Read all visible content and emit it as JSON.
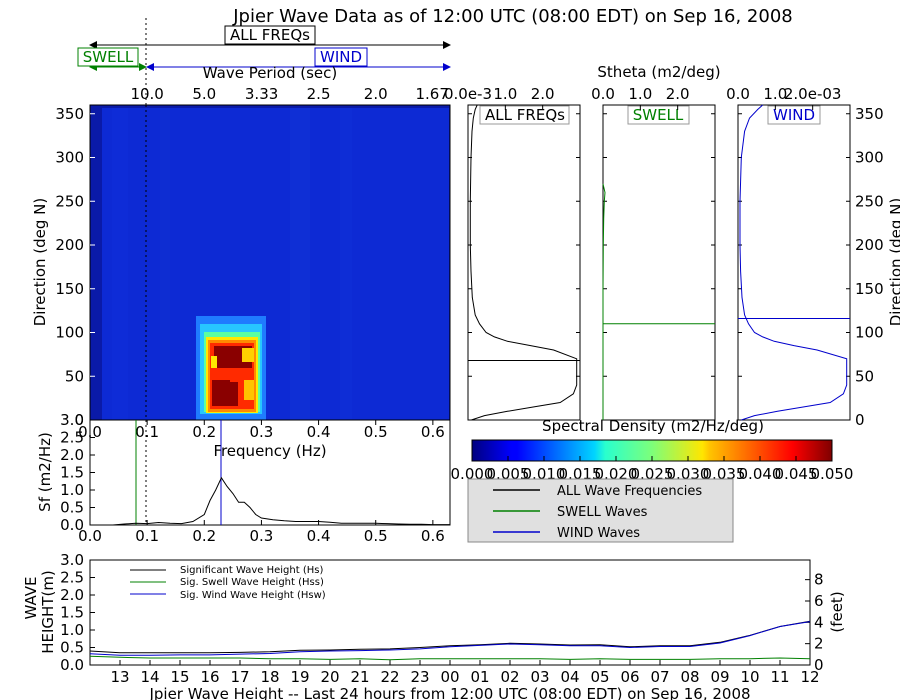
{
  "title": "Jpier Wave Data as of 12:00 UTC (08:00 EDT) on Sep 16, 2008",
  "colors": {
    "all": "#000000",
    "swell": "#008000",
    "wind": "#0000cc",
    "panel_bg": "#e0e0e0"
  },
  "top_band": {
    "all_label": "ALL FREQs",
    "swell_label": "SWELL",
    "wind_label": "WIND",
    "period_label": "Wave Period (sec)",
    "period_ticks": [
      "10.0",
      "5.0",
      "3.33",
      "2.5",
      "2.0",
      "1.67"
    ]
  },
  "spectrum_map": {
    "ylabel": "Direction (deg N)",
    "yticks": [
      "0",
      "50",
      "100",
      "150",
      "200",
      "250",
      "300",
      "350"
    ]
  },
  "sf_plot": {
    "ylabel": "Sf (m2/Hz)",
    "xlabel": "Frequency (Hz)",
    "xticks": [
      "0.0",
      "0.1",
      "0.2",
      "0.3",
      "0.4",
      "0.5",
      "0.6"
    ],
    "yticks": [
      "0.0",
      "0.5",
      "1.0",
      "1.5",
      "2.0",
      "2.5",
      "3.0"
    ]
  },
  "stheta": {
    "title": "Stheta (m2/deg)",
    "panels": [
      {
        "label": "ALL FREQs",
        "ticks": [
          "0.0e-3",
          "1.0",
          "2.0"
        ]
      },
      {
        "label": "SWELL",
        "ticks": [
          "0.0",
          "1.0",
          "2.0"
        ]
      },
      {
        "label": "WIND",
        "ticks": [
          "0.0",
          "1.0",
          "2.0e-03"
        ]
      }
    ],
    "yticks_right": [
      "0",
      "50",
      "100",
      "150",
      "200",
      "250",
      "300",
      "350"
    ],
    "ylabel_right": "Direction (deg N)"
  },
  "colorbar": {
    "label": "Spectral Density (m2/Hz/deg)",
    "ticks": [
      "0.000",
      "0.005",
      "0.010",
      "0.015",
      "0.020",
      "0.025",
      "0.030",
      "0.035",
      "0.040",
      "0.045",
      "0.050"
    ]
  },
  "legend_box": {
    "items": [
      "ALL Wave Frequencies",
      "SWELL Waves",
      "WIND Waves"
    ]
  },
  "height_plot": {
    "ylabel_line1": "WAVE",
    "ylabel_line2": "HEIGHT(m)",
    "ylabel_right": "(feet)",
    "xlabel": "Jpier Wave Height -- Last 24 hours from 12:00 UTC (08:00 EDT) on Sep 16, 2008",
    "xticks": [
      "13",
      "14",
      "15",
      "16",
      "17",
      "18",
      "19",
      "20",
      "21",
      "22",
      "23",
      "00",
      "01",
      "02",
      "03",
      "04",
      "05",
      "06",
      "07",
      "08",
      "09",
      "10",
      "11",
      "12"
    ],
    "yticks": [
      "0.0",
      "0.5",
      "1.0",
      "1.5",
      "2.0",
      "2.5",
      "3.0"
    ],
    "yticks_right": [
      "0",
      "2",
      "4",
      "6",
      "8"
    ],
    "legend": [
      "Significant Wave Height (Hs)",
      "Sig. Swell Wave Height (Hss)",
      "Sig. Wind Wave Height (Hsw)"
    ]
  },
  "chart_data": [
    {
      "type": "heatmap",
      "title": "",
      "xlabel": "Frequency (Hz)",
      "ylabel": "Direction (deg N)",
      "xlim": [
        0.0,
        0.63
      ],
      "ylim": [
        0,
        360
      ],
      "colorscale_range": [
        0.0,
        0.05
      ],
      "peak_region": {
        "frequency_range": [
          0.21,
          0.27
        ],
        "direction_range": [
          15,
          90
        ],
        "max_value": 0.05
      }
    },
    {
      "type": "line",
      "title": "",
      "xlabel": "Frequency (Hz)",
      "ylabel": "Sf (m2/Hz)",
      "xlim": [
        0.0,
        0.63
      ],
      "ylim": [
        0.0,
        3.0
      ],
      "x": [
        0.0,
        0.04,
        0.06,
        0.08,
        0.1,
        0.12,
        0.14,
        0.16,
        0.18,
        0.2,
        0.21,
        0.22,
        0.23,
        0.24,
        0.25,
        0.26,
        0.27,
        0.28,
        0.29,
        0.3,
        0.32,
        0.34,
        0.36,
        0.38,
        0.4,
        0.42,
        0.44,
        0.46,
        0.48,
        0.5,
        0.52,
        0.54,
        0.56,
        0.58,
        0.6,
        0.63
      ],
      "series": [
        {
          "name": "ALL Wave Frequencies",
          "values": [
            0.0,
            0.0,
            0.03,
            0.05,
            0.04,
            0.07,
            0.05,
            0.04,
            0.1,
            0.3,
            0.7,
            1.0,
            1.35,
            1.1,
            0.9,
            0.65,
            0.65,
            0.5,
            0.3,
            0.2,
            0.15,
            0.12,
            0.1,
            0.1,
            0.1,
            0.08,
            0.05,
            0.05,
            0.05,
            0.05,
            0.04,
            0.03,
            0.02,
            0.02,
            0.01,
            0.01
          ]
        }
      ],
      "markers": {
        "swell_separation_frequency": 0.08,
        "wind_peak_frequency": 0.23,
        "dotted_period_10s": 0.1
      }
    },
    {
      "type": "line",
      "title": "ALL FREQs",
      "xlabel": "Stheta (m2/deg)",
      "ylabel": "Direction (deg N)",
      "xlim": [
        0.0,
        2.0
      ],
      "ylim": [
        0,
        360
      ],
      "y": [
        0,
        5,
        10,
        15,
        20,
        30,
        40,
        50,
        60,
        70,
        80,
        85,
        90,
        95,
        100,
        110,
        120,
        140,
        170,
        200,
        250,
        300,
        330,
        345,
        355,
        360
      ],
      "series": [
        {
          "name": "ALL Wave Frequencies",
          "values": [
            0.1,
            0.5,
            1.2,
            2.0,
            2.8,
            3.2,
            3.3,
            3.3,
            3.3,
            3.3,
            2.6,
            1.9,
            1.2,
            0.8,
            0.55,
            0.35,
            0.22,
            0.13,
            0.09,
            0.07,
            0.07,
            0.09,
            0.12,
            0.16,
            0.22,
            0.28
          ]
        }
      ],
      "hline": 68
    },
    {
      "type": "line",
      "title": "SWELL",
      "xlabel": "Stheta (m2/deg)",
      "ylabel": "Direction (deg N)",
      "xlim": [
        0.0,
        2.0
      ],
      "ylim": [
        0,
        360
      ],
      "y": [
        0,
        100,
        150,
        200,
        230,
        250,
        260,
        270
      ],
      "series": [
        {
          "name": "SWELL Waves",
          "values": [
            0.0,
            0.0,
            0.0,
            0.01,
            0.02,
            0.04,
            0.06,
            0.0
          ]
        }
      ],
      "hline": 110
    },
    {
      "type": "line",
      "title": "WIND",
      "xlabel": "Stheta (m2/deg)",
      "ylabel": "Direction (deg N)",
      "xlim": [
        0.0,
        2.0
      ],
      "ylim": [
        0,
        360
      ],
      "y": [
        0,
        5,
        10,
        15,
        20,
        30,
        40,
        50,
        60,
        70,
        80,
        85,
        90,
        95,
        100,
        110,
        120,
        140,
        170,
        200,
        250,
        300,
        330,
        345,
        355,
        360
      ],
      "series": [
        {
          "name": "WIND Waves",
          "values": [
            0.1,
            0.5,
            1.2,
            2.0,
            2.8,
            3.2,
            3.3,
            3.3,
            3.3,
            3.3,
            2.4,
            1.7,
            1.1,
            0.75,
            0.5,
            0.32,
            0.2,
            0.12,
            0.08,
            0.06,
            0.06,
            0.1,
            0.2,
            0.35,
            0.6,
            0.75
          ]
        }
      ],
      "hline": 116
    },
    {
      "type": "line",
      "title": "",
      "xlabel": "Jpier Wave Height -- Last 24 hours from 12:00 UTC (08:00 EDT) on Sep 16, 2008",
      "ylabel": "WAVE HEIGHT(m)",
      "ylim": [
        0.0,
        3.0
      ],
      "x": [
        "12",
        "13",
        "14",
        "15",
        "16",
        "17",
        "18",
        "19",
        "20",
        "21",
        "22",
        "23",
        "00",
        "01",
        "02",
        "03",
        "04",
        "05",
        "06",
        "07",
        "08",
        "09",
        "10",
        "11",
        "12"
      ],
      "series": [
        {
          "name": "Significant Wave Height (Hs)",
          "values": [
            0.4,
            0.35,
            0.35,
            0.35,
            0.35,
            0.36,
            0.38,
            0.42,
            0.43,
            0.45,
            0.46,
            0.5,
            0.55,
            0.58,
            0.62,
            0.6,
            0.57,
            0.58,
            0.52,
            0.55,
            0.55,
            0.65,
            0.85,
            1.1,
            1.25
          ]
        },
        {
          "name": "Sig. Swell Wave Height (Hss)",
          "values": [
            0.25,
            0.22,
            0.2,
            0.2,
            0.2,
            0.2,
            0.18,
            0.18,
            0.16,
            0.18,
            0.15,
            0.18,
            0.18,
            0.18,
            0.18,
            0.18,
            0.16,
            0.18,
            0.16,
            0.16,
            0.16,
            0.18,
            0.18,
            0.2,
            0.18
          ]
        },
        {
          "name": "Sig. Wind Wave Height (Hsw)",
          "values": [
            0.32,
            0.28,
            0.28,
            0.29,
            0.29,
            0.31,
            0.33,
            0.38,
            0.4,
            0.41,
            0.43,
            0.46,
            0.52,
            0.56,
            0.6,
            0.58,
            0.55,
            0.55,
            0.5,
            0.53,
            0.53,
            0.63,
            0.84,
            1.1,
            1.24
          ]
        }
      ]
    }
  ]
}
